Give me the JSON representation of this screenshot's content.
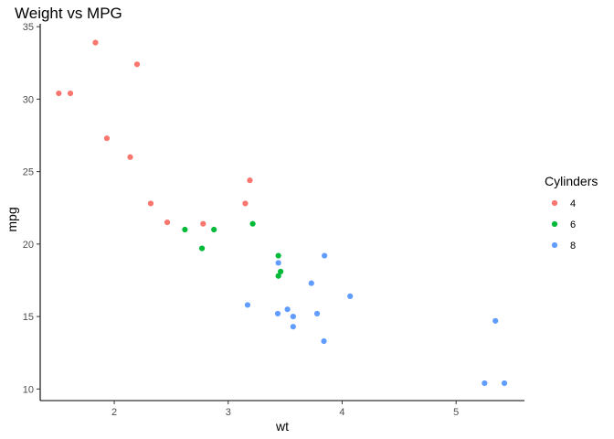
{
  "chart_data": {
    "type": "scatter",
    "title": "Weight vs MPG",
    "xlabel": "wt",
    "ylabel": "mpg",
    "xlim": [
      1.35,
      5.6
    ],
    "ylim": [
      9.2,
      35.2
    ],
    "xticks": [
      2,
      3,
      4,
      5
    ],
    "yticks": [
      10,
      15,
      20,
      25,
      30,
      35
    ],
    "grid": false,
    "legend": {
      "title": "Cylinders",
      "position": "right"
    },
    "series": [
      {
        "name": "4",
        "color": "#F8766D",
        "x": [
          1.513,
          1.615,
          1.835,
          1.935,
          2.14,
          2.2,
          2.32,
          2.465,
          2.78,
          3.15,
          3.19
        ],
        "y": [
          30.4,
          30.4,
          33.9,
          27.3,
          26.0,
          32.4,
          22.8,
          21.5,
          21.4,
          22.8,
          24.4
        ]
      },
      {
        "name": "6",
        "color": "#00BA38",
        "x": [
          2.62,
          2.77,
          2.875,
          3.215,
          3.44,
          3.44,
          3.46
        ],
        "y": [
          21.0,
          19.7,
          21.0,
          21.4,
          19.2,
          17.8,
          18.1
        ]
      },
      {
        "name": "8",
        "color": "#619CFF",
        "x": [
          3.17,
          3.435,
          3.44,
          3.52,
          3.57,
          3.57,
          3.73,
          3.78,
          3.84,
          3.845,
          4.07,
          5.25,
          5.345,
          5.424
        ],
        "y": [
          15.8,
          15.2,
          18.7,
          15.5,
          15.0,
          14.3,
          17.3,
          15.2,
          13.3,
          19.2,
          16.4,
          10.4,
          14.7,
          10.4
        ]
      }
    ]
  }
}
